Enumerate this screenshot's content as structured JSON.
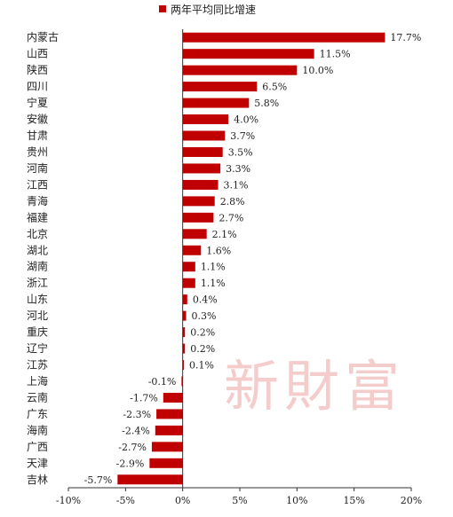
{
  "chart_data": {
    "type": "bar",
    "orientation": "horizontal",
    "series": [
      {
        "name": "两年平均同比增速",
        "color": "#c00000"
      }
    ],
    "categories": [
      "内蒙古",
      "山西",
      "陕西",
      "四川",
      "宁夏",
      "安徽",
      "甘肃",
      "贵州",
      "河南",
      "江西",
      "青海",
      "福建",
      "北京",
      "湖北",
      "湖南",
      "浙江",
      "山东",
      "河北",
      "重庆",
      "辽宁",
      "江苏",
      "上海",
      "云南",
      "广东",
      "海南",
      "广西",
      "天津",
      "吉林"
    ],
    "values": [
      17.7,
      11.5,
      10.0,
      6.5,
      5.8,
      4.0,
      3.7,
      3.5,
      3.3,
      3.1,
      2.8,
      2.7,
      2.1,
      1.6,
      1.1,
      1.1,
      0.4,
      0.3,
      0.2,
      0.2,
      0.1,
      -0.1,
      -1.7,
      -2.3,
      -2.4,
      -2.7,
      -2.9,
      -5.7
    ],
    "value_labels": [
      "17.7%",
      "11.5%",
      "10.0%",
      "6.5%",
      "5.8%",
      "4.0%",
      "3.7%",
      "3.5%",
      "3.3%",
      "3.1%",
      "2.8%",
      "2.7%",
      "2.1%",
      "1.6%",
      "1.1%",
      "1.1%",
      "0.4%",
      "0.3%",
      "0.2%",
      "0.2%",
      "0.1%",
      "-0.1%",
      "-1.7%",
      "-2.3%",
      "-2.4%",
      "-2.7%",
      "-2.9%",
      "-5.7%"
    ],
    "xlim": [
      -10,
      20
    ],
    "x_ticks": [
      -10,
      -5,
      0,
      5,
      10,
      15,
      20
    ],
    "x_tick_labels": [
      "-10%",
      "-5%",
      "0%",
      "5%",
      "10%",
      "15%",
      "20%"
    ],
    "legend_position": "top-center",
    "grid": false
  },
  "watermark": "新財富"
}
